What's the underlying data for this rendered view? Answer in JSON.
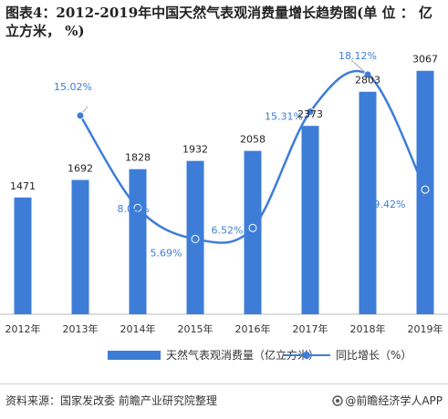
{
  "title": "图表4：2012-2019年中国天然气表观消费量增长趋势图(单 位 ： 亿立方米，  %)",
  "colors": {
    "bar": "#3d7dd8",
    "line": "#3d7dd8",
    "label": "#3d7dd8"
  },
  "chart_data": {
    "type": "bar",
    "title": "图表4：2012-2019年中国天然气表观消费量增长趋势图(单 位 ： 亿立方米，  %)",
    "categories": [
      "2012年",
      "2013年",
      "2014年",
      "2015年",
      "2016年",
      "2017年",
      "2018年",
      "2019年"
    ],
    "series": [
      {
        "name": "天然气表观消费量（亿立方米）",
        "type": "bar",
        "values": [
          1471,
          1692,
          1828,
          1932,
          2058,
          2373,
          2803,
          3067
        ]
      },
      {
        "name": "同比增长（%）",
        "type": "line",
        "values": [
          null,
          15.02,
          8.04,
          5.69,
          6.52,
          15.31,
          18.12,
          9.42
        ]
      }
    ],
    "bar_labels": [
      "1471",
      "1692",
      "1828",
      "1932",
      "2058",
      "2373",
      "2803",
      "3067"
    ],
    "line_labels": [
      "",
      "15.02%",
      "8.04%",
      "5.69%",
      "6.52%",
      "15.31%",
      "18.12%",
      "9.42%"
    ],
    "ylim_bar": [
      0,
      3500
    ],
    "ylim_line": [
      0,
      21
    ],
    "grid": false,
    "legend": "bottom"
  },
  "legend": {
    "bar": "天然气表观消费量（亿立方米）",
    "line": "同比增长（%）"
  },
  "footer": {
    "source": "资料来源：国家发改委 前瞻产业研究院整理",
    "brand": "@前瞻经济学人APP"
  }
}
